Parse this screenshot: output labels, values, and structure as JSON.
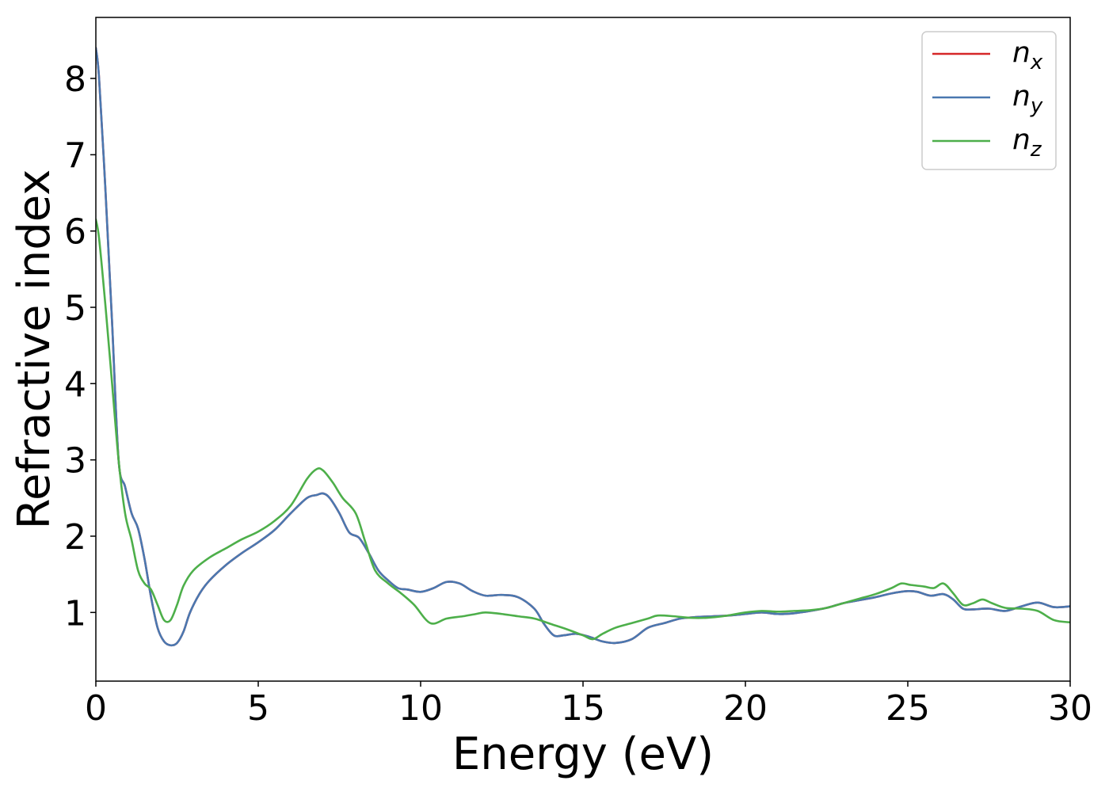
{
  "chart_data": {
    "type": "line",
    "xlabel": "Energy (eV)",
    "ylabel": "Refractive index",
    "xlim": [
      0,
      30
    ],
    "ylim": [
      0.1,
      8.8
    ],
    "xticks": [
      0,
      5,
      10,
      15,
      20,
      25,
      30
    ],
    "yticks": [
      1,
      2,
      3,
      4,
      5,
      6,
      7,
      8
    ],
    "grid": false,
    "legend_position": "top-right",
    "series": [
      {
        "name": "n",
        "subscript": "x",
        "color": "#d62728",
        "x": [
          0,
          0.1,
          0.3,
          0.5,
          0.7,
          0.9,
          1.1,
          1.3,
          1.5,
          1.7,
          1.9,
          2.1,
          2.3,
          2.5,
          2.7,
          2.9,
          3.2,
          3.5,
          4,
          4.5,
          5,
          5.5,
          6,
          6.5,
          6.8,
          7,
          7.2,
          7.5,
          7.8,
          8.1,
          8.4,
          8.7,
          9,
          9.3,
          9.6,
          10,
          10.4,
          10.8,
          11.2,
          11.6,
          12,
          12.5,
          13,
          13.5,
          13.8,
          14.1,
          14.4,
          14.8,
          15.2,
          15.6,
          16,
          16.5,
          17,
          17.5,
          18,
          18.5,
          19,
          19.5,
          20,
          20.5,
          21,
          21.5,
          22,
          22.5,
          23,
          23.5,
          24,
          24.5,
          25,
          25.3,
          25.7,
          26.1,
          26.4,
          26.7,
          27,
          27.5,
          28,
          28.5,
          29,
          29.5,
          30
        ],
        "values": [
          8.4,
          8.0,
          6.5,
          4.8,
          3.0,
          2.65,
          2.3,
          2.1,
          1.7,
          1.2,
          0.8,
          0.62,
          0.57,
          0.6,
          0.75,
          1.0,
          1.25,
          1.42,
          1.62,
          1.78,
          1.92,
          2.08,
          2.3,
          2.5,
          2.54,
          2.56,
          2.5,
          2.3,
          2.05,
          1.98,
          1.78,
          1.55,
          1.42,
          1.32,
          1.3,
          1.27,
          1.32,
          1.4,
          1.38,
          1.28,
          1.22,
          1.23,
          1.2,
          1.05,
          0.85,
          0.7,
          0.7,
          0.72,
          0.68,
          0.62,
          0.6,
          0.65,
          0.8,
          0.86,
          0.92,
          0.94,
          0.95,
          0.96,
          0.98,
          1.0,
          0.98,
          0.99,
          1.02,
          1.06,
          1.12,
          1.16,
          1.2,
          1.25,
          1.28,
          1.27,
          1.22,
          1.24,
          1.17,
          1.05,
          1.04,
          1.05,
          1.02,
          1.08,
          1.13,
          1.07,
          1.08
        ]
      },
      {
        "name": "n",
        "subscript": "y",
        "color": "#4a78b0",
        "x": [
          0,
          0.1,
          0.3,
          0.5,
          0.7,
          0.9,
          1.1,
          1.3,
          1.5,
          1.7,
          1.9,
          2.1,
          2.3,
          2.5,
          2.7,
          2.9,
          3.2,
          3.5,
          4,
          4.5,
          5,
          5.5,
          6,
          6.5,
          6.8,
          7,
          7.2,
          7.5,
          7.8,
          8.1,
          8.4,
          8.7,
          9,
          9.3,
          9.6,
          10,
          10.4,
          10.8,
          11.2,
          11.6,
          12,
          12.5,
          13,
          13.5,
          13.8,
          14.1,
          14.4,
          14.8,
          15.2,
          15.6,
          16,
          16.5,
          17,
          17.5,
          18,
          18.5,
          19,
          19.5,
          20,
          20.5,
          21,
          21.5,
          22,
          22.5,
          23,
          23.5,
          24,
          24.5,
          25,
          25.3,
          25.7,
          26.1,
          26.4,
          26.7,
          27,
          27.5,
          28,
          28.5,
          29,
          29.5,
          30
        ],
        "values": [
          8.4,
          8.0,
          6.5,
          4.8,
          3.0,
          2.65,
          2.3,
          2.1,
          1.7,
          1.2,
          0.8,
          0.62,
          0.57,
          0.6,
          0.75,
          1.0,
          1.25,
          1.42,
          1.62,
          1.78,
          1.92,
          2.08,
          2.3,
          2.5,
          2.54,
          2.56,
          2.5,
          2.3,
          2.05,
          1.98,
          1.78,
          1.55,
          1.42,
          1.32,
          1.3,
          1.27,
          1.32,
          1.4,
          1.38,
          1.28,
          1.22,
          1.23,
          1.2,
          1.05,
          0.85,
          0.7,
          0.7,
          0.72,
          0.68,
          0.62,
          0.6,
          0.65,
          0.8,
          0.86,
          0.92,
          0.94,
          0.95,
          0.96,
          0.98,
          1.0,
          0.98,
          0.99,
          1.02,
          1.06,
          1.12,
          1.16,
          1.2,
          1.25,
          1.28,
          1.27,
          1.22,
          1.24,
          1.17,
          1.05,
          1.04,
          1.05,
          1.02,
          1.08,
          1.13,
          1.07,
          1.08
        ]
      },
      {
        "name": "n",
        "subscript": "z",
        "color": "#4daf4a",
        "x": [
          0,
          0.1,
          0.3,
          0.5,
          0.7,
          0.9,
          1.1,
          1.3,
          1.5,
          1.7,
          1.9,
          2.1,
          2.3,
          2.5,
          2.7,
          3.0,
          3.5,
          4,
          4.5,
          5,
          5.5,
          6,
          6.5,
          6.8,
          7,
          7.3,
          7.6,
          8,
          8.3,
          8.6,
          9,
          9.4,
          9.8,
          10.3,
          10.8,
          11.3,
          11.7,
          12,
          12.5,
          13,
          13.5,
          14,
          14.5,
          15,
          15.3,
          15.6,
          16,
          16.5,
          17,
          17.3,
          17.8,
          18.3,
          18.8,
          19.3,
          20,
          20.5,
          21,
          21.5,
          22,
          22.5,
          23,
          23.5,
          24,
          24.5,
          24.8,
          25.1,
          25.5,
          25.8,
          26.1,
          26.4,
          26.7,
          27,
          27.3,
          27.6,
          28,
          28.5,
          29,
          29.5,
          30
        ],
        "values": [
          6.15,
          5.9,
          5.0,
          4.0,
          3.0,
          2.3,
          1.95,
          1.55,
          1.38,
          1.3,
          1.1,
          0.9,
          0.9,
          1.1,
          1.35,
          1.55,
          1.72,
          1.84,
          1.96,
          2.06,
          2.2,
          2.4,
          2.75,
          2.88,
          2.86,
          2.7,
          2.5,
          2.3,
          1.92,
          1.55,
          1.38,
          1.25,
          1.1,
          0.86,
          0.92,
          0.95,
          0.98,
          1.0,
          0.98,
          0.95,
          0.92,
          0.85,
          0.78,
          0.7,
          0.65,
          0.72,
          0.8,
          0.86,
          0.92,
          0.96,
          0.95,
          0.93,
          0.93,
          0.95,
          1.0,
          1.02,
          1.01,
          1.02,
          1.03,
          1.06,
          1.12,
          1.18,
          1.24,
          1.32,
          1.38,
          1.36,
          1.34,
          1.32,
          1.38,
          1.25,
          1.1,
          1.12,
          1.17,
          1.12,
          1.06,
          1.05,
          1.02,
          0.9,
          0.87
        ]
      }
    ]
  }
}
